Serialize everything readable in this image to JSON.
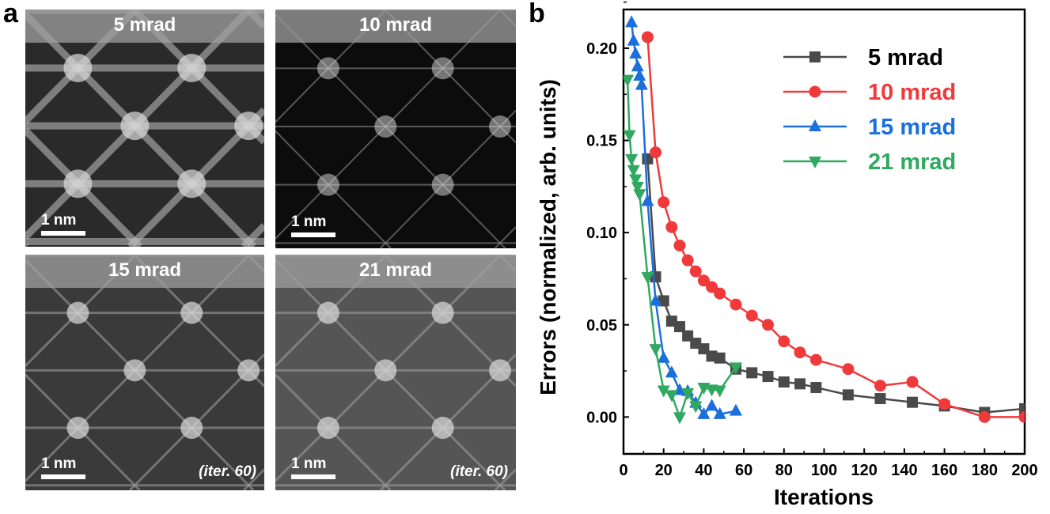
{
  "panel_a": {
    "letter": "a",
    "images": [
      {
        "title": "5 mrad",
        "scale_bar": "1 nm",
        "note": "",
        "highlighted": false,
        "style": "blurred"
      },
      {
        "title": "10 mrad",
        "scale_bar": "1 nm",
        "note": "",
        "highlighted": true,
        "style": "sharp"
      },
      {
        "title": "15 mrad",
        "scale_bar": "1 nm",
        "note": "(iter. 60)",
        "highlighted": false,
        "style": "noisy"
      },
      {
        "title": "21 mrad",
        "scale_bar": "1 nm",
        "note": "(iter. 60)",
        "highlighted": false,
        "style": "noisy-light"
      }
    ],
    "highlight_color": "#e3170a"
  },
  "panel_b": {
    "letter": "b"
  },
  "chart_data": {
    "type": "line",
    "xlabel": "Iterations",
    "ylabel": "Errors (normalized, arb. units)",
    "xlim": [
      0,
      200
    ],
    "ylim": [
      -0.02,
      0.221
    ],
    "xticks": [
      "0",
      "20",
      "40",
      "60",
      "80",
      "100",
      "120",
      "140",
      "160",
      "180",
      "200"
    ],
    "yticks": [
      "0.00",
      "0.05",
      "0.10",
      "0.15",
      "0.20"
    ],
    "grid": false,
    "legend_position": "top-right",
    "series": [
      {
        "name": "5 mrad",
        "color": "#4a4a4a",
        "marker": "square",
        "x": [
          12,
          16,
          20,
          24,
          28,
          32,
          36,
          40,
          44,
          48,
          56,
          64,
          72,
          80,
          88,
          96,
          112,
          128,
          144,
          160,
          180,
          200
        ],
        "y": [
          0.14,
          0.076,
          0.063,
          0.052,
          0.049,
          0.044,
          0.04,
          0.037,
          0.033,
          0.032,
          0.026,
          0.024,
          0.022,
          0.019,
          0.018,
          0.016,
          0.012,
          0.01,
          0.008,
          0.006,
          0.0025,
          0.0045
        ]
      },
      {
        "name": "10 mrad",
        "color": "#f0393b",
        "marker": "circle",
        "x": [
          12,
          16,
          20,
          24,
          28,
          32,
          36,
          40,
          44,
          48,
          56,
          64,
          72,
          80,
          88,
          96,
          112,
          128,
          144,
          160,
          180,
          200
        ],
        "y": [
          0.206,
          0.1435,
          0.1165,
          0.103,
          0.093,
          0.085,
          0.079,
          0.074,
          0.0705,
          0.067,
          0.061,
          0.055,
          0.05,
          0.041,
          0.035,
          0.031,
          0.026,
          0.017,
          0.019,
          0.007,
          0.0,
          0.0
        ]
      },
      {
        "name": "15 mrad",
        "color": "#1a6fdc",
        "marker": "triangle-up",
        "x": [
          4,
          5,
          6,
          7,
          8,
          9,
          12,
          16,
          20,
          24,
          28,
          32,
          36,
          40,
          44,
          48,
          56
        ],
        "y": [
          0.214,
          0.204,
          0.197,
          0.19,
          0.185,
          0.18,
          0.117,
          0.063,
          0.032,
          0.024,
          0.0145,
          0.014,
          0.0076,
          0.0015,
          0.006,
          0.0015,
          0.0033
        ]
      },
      {
        "name": "21 mrad",
        "color": "#2fa860",
        "marker": "triangle-down",
        "x": [
          2,
          3,
          4,
          5,
          6,
          7,
          8,
          12,
          16,
          20,
          24,
          28,
          32,
          36,
          40,
          44,
          48,
          56
        ],
        "y": [
          0.183,
          0.153,
          0.14,
          0.134,
          0.129,
          0.125,
          0.121,
          0.076,
          0.037,
          0.0145,
          0.012,
          0.0,
          0.013,
          0.006,
          0.016,
          0.015,
          0.0145,
          0.027
        ]
      }
    ]
  }
}
